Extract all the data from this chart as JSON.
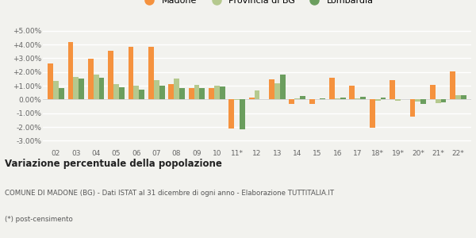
{
  "years": [
    "02",
    "03",
    "04",
    "05",
    "06",
    "07",
    "08",
    "09",
    "10",
    "11*",
    "12",
    "13",
    "14",
    "15",
    "16",
    "17",
    "18*",
    "19*",
    "20*",
    "21*",
    "22*"
  ],
  "madone": [
    2.6,
    4.2,
    2.95,
    3.55,
    3.8,
    3.85,
    1.1,
    0.85,
    0.8,
    -2.1,
    0.15,
    1.45,
    -0.35,
    -0.35,
    1.6,
    1.0,
    -2.05,
    1.4,
    -1.25,
    1.05,
    2.05
  ],
  "provincia": [
    1.35,
    1.65,
    1.8,
    1.1,
    1.0,
    1.4,
    1.5,
    1.05,
    1.0,
    -0.05,
    0.65,
    1.2,
    0.1,
    0.0,
    0.1,
    0.1,
    -0.1,
    -0.1,
    -0.15,
    -0.25,
    0.3
  ],
  "lombardia": [
    0.85,
    1.5,
    1.55,
    0.9,
    0.7,
    1.0,
    0.85,
    0.85,
    0.95,
    -2.15,
    0.0,
    1.8,
    0.25,
    0.1,
    0.15,
    0.2,
    0.15,
    0.0,
    -0.3,
    -0.2,
    0.3
  ],
  "color_madone": "#f5923e",
  "color_provincia": "#b5c98e",
  "color_lombardia": "#6b9e5e",
  "bg_color": "#f2f2ee",
  "grid_color": "#ffffff",
  "title_bold": "Variazione percentuale della popolazione",
  "subtitle": "COMUNE DI MADONE (BG) - Dati ISTAT al 31 dicembre di ogni anno - Elaborazione TUTTITALIA.IT",
  "footnote": "(*) post-censimento",
  "ylim": [
    -3.5,
    5.5
  ],
  "yticks": [
    -3.0,
    -2.0,
    -1.0,
    0.0,
    1.0,
    2.0,
    3.0,
    4.0,
    5.0
  ],
  "ytick_labels": [
    "-3.00%",
    "-2.00%",
    "-1.00%",
    "0.00%",
    "+1.00%",
    "+2.00%",
    "+3.00%",
    "+4.00%",
    "+5.00%"
  ]
}
